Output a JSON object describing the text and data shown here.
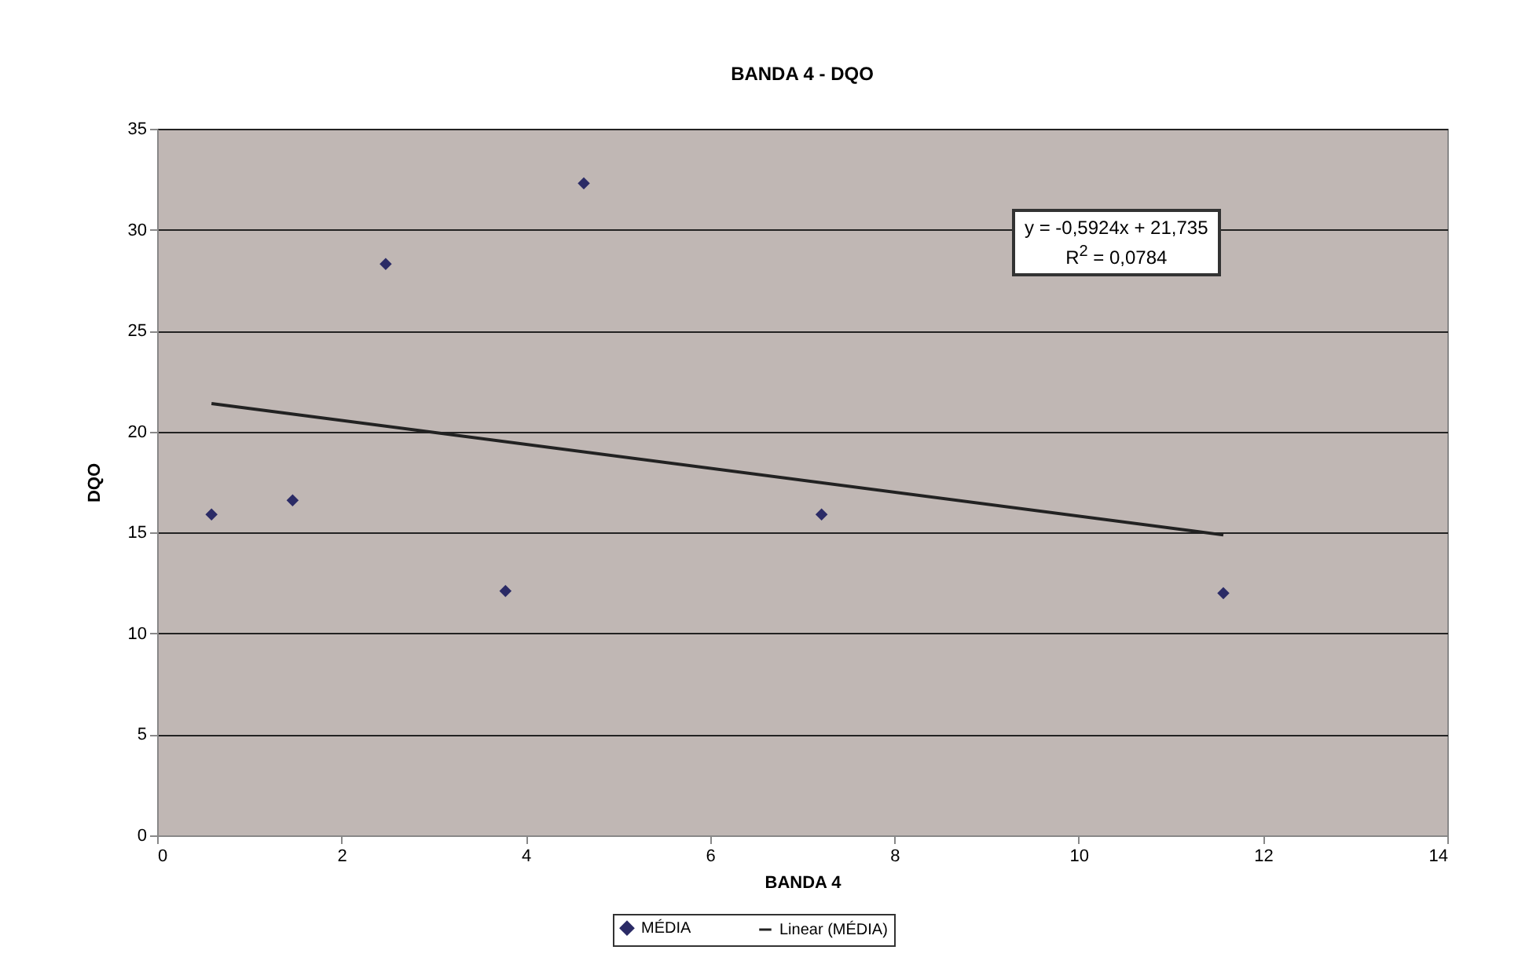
{
  "chart_data": {
    "type": "scatter",
    "title": "BANDA 4 - DQO",
    "xlabel": "BANDA 4",
    "ylabel": "DQO",
    "series": [
      {
        "name": "MÉDIA",
        "marker": "diamond",
        "color": "#2b2b66",
        "x": [
          0.59,
          1.47,
          2.48,
          3.78,
          4.63,
          7.21,
          11.57
        ],
        "values": [
          15.9,
          16.6,
          28.3,
          12.1,
          32.3,
          15.9,
          12.0
        ]
      },
      {
        "name": "Linear (MÉDIA)",
        "type": "line",
        "marker": "none",
        "color": "#222222",
        "x": [
          0.59,
          11.57
        ],
        "values": [
          21.39,
          14.88
        ]
      }
    ],
    "xlim": [
      0,
      14
    ],
    "xticks": [
      0,
      2,
      4,
      6,
      8,
      10,
      12,
      14
    ],
    "ylim": [
      0,
      35
    ],
    "yticks": [
      0,
      5,
      10,
      15,
      20,
      25,
      30,
      35
    ],
    "grid": "y",
    "legend": "bottom",
    "annotations": [
      "y = -0,5924x + 21,735",
      "R$^{2}$ = 0,0784"
    ]
  }
}
